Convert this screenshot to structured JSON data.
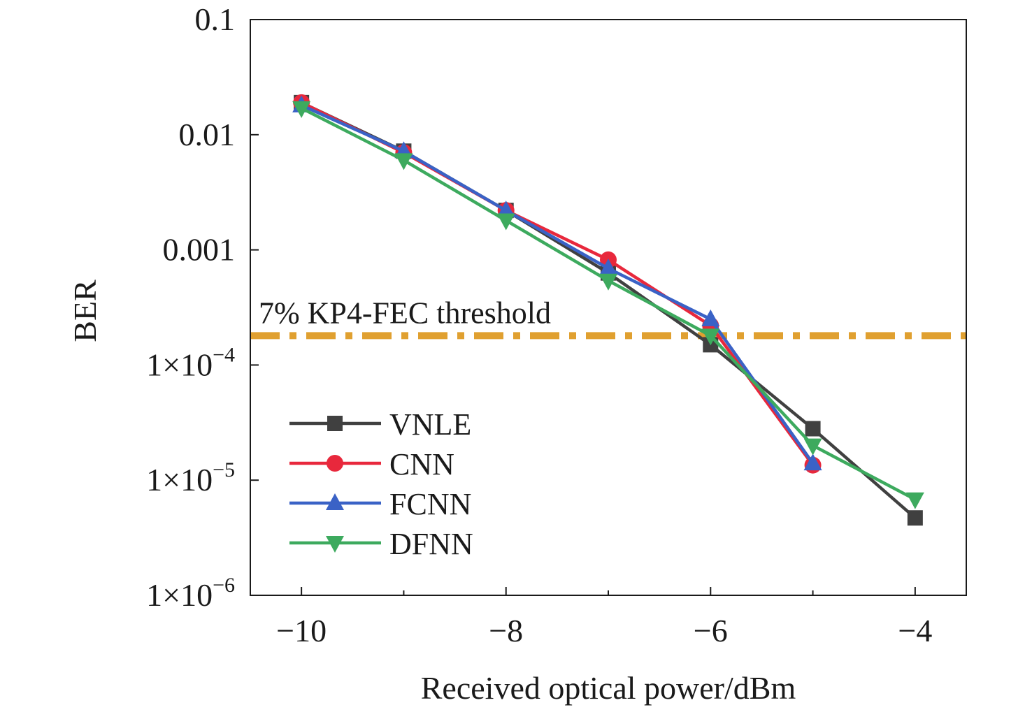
{
  "chart_data": {
    "type": "line",
    "xlabel": "Received optical power/dBm",
    "ylabel": "BER",
    "x_scale": "linear",
    "y_scale": "log",
    "xlim": [
      -10.5,
      -3.5
    ],
    "ylim": [
      1e-06,
      0.1
    ],
    "x_ticks": [
      -10,
      -8,
      -6,
      -4
    ],
    "x_tick_labels": [
      "−10",
      "−8",
      "−6",
      "−4"
    ],
    "y_ticks": [
      {
        "value": 0.1,
        "mantissa": "0.1",
        "exp": ""
      },
      {
        "value": 0.01,
        "mantissa": "0.01",
        "exp": ""
      },
      {
        "value": 0.001,
        "mantissa": "0.001",
        "exp": ""
      },
      {
        "value": 0.0001,
        "mantissa": "1×10",
        "exp": "−4"
      },
      {
        "value": 1e-05,
        "mantissa": "1×10",
        "exp": "−5"
      },
      {
        "value": 1e-06,
        "mantissa": "1×10",
        "exp": "−6"
      }
    ],
    "grid": false,
    "legend_position": "lower-left",
    "threshold": {
      "label": "7% KP4-FEC threshold",
      "value": 0.00018,
      "color": "#E0A030"
    },
    "series": [
      {
        "name": "VNLE",
        "color": "#404040",
        "marker": "square",
        "x": [
          -10,
          -9,
          -8,
          -7,
          -6,
          -5,
          -4
        ],
        "y": [
          0.019,
          0.0072,
          0.0022,
          0.00063,
          0.00015,
          2.8e-05,
          4.7e-06
        ]
      },
      {
        "name": "CNN",
        "color": "#E8283C",
        "marker": "circle",
        "x": [
          -10,
          -9,
          -8,
          -7,
          -6,
          -5
        ],
        "y": [
          0.019,
          0.007,
          0.0022,
          0.00082,
          0.00022,
          1.35e-05
        ]
      },
      {
        "name": "FCNN",
        "color": "#3A62C6",
        "marker": "triangle-up",
        "x": [
          -10,
          -9,
          -8,
          -7,
          -6,
          -5
        ],
        "y": [
          0.018,
          0.0072,
          0.0022,
          0.00069,
          0.00025,
          1.4e-05
        ]
      },
      {
        "name": "DFNN",
        "color": "#3DAA5E",
        "marker": "triangle-down",
        "x": [
          -10,
          -9,
          -8,
          -7,
          -6,
          -5,
          -4
        ],
        "y": [
          0.017,
          0.006,
          0.0018,
          0.00054,
          0.00018,
          2e-05,
          6.8e-06
        ]
      }
    ]
  }
}
